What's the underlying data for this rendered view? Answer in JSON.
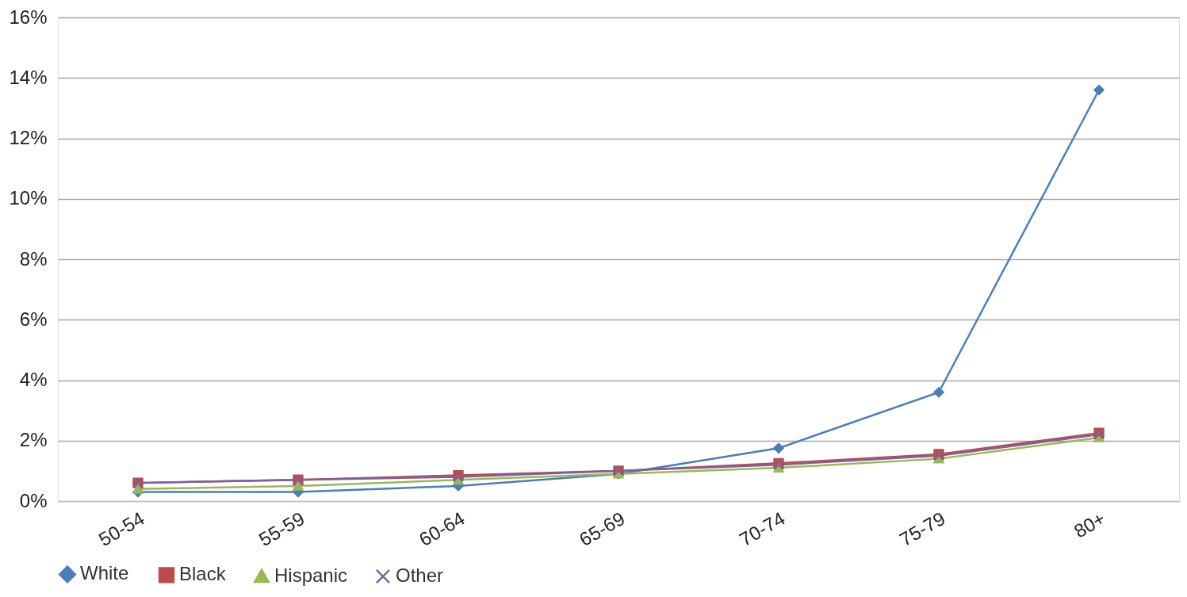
{
  "chart_data": {
    "type": "line",
    "categories": [
      "50-54",
      "55-59",
      "60-64",
      "65-69",
      "70-74",
      "75-79",
      "80+"
    ],
    "series": [
      {
        "name": "White",
        "color": "#4a7ebb",
        "marker": "diamond",
        "values": [
          0.3,
          0.3,
          0.5,
          0.9,
          1.75,
          3.6,
          13.6
        ]
      },
      {
        "name": "Black",
        "color": "#be4b48",
        "marker": "square",
        "values": [
          0.6,
          0.7,
          0.85,
          1.0,
          1.25,
          1.55,
          2.25
        ]
      },
      {
        "name": "Hispanic",
        "color": "#98b954",
        "marker": "triangle",
        "values": [
          0.4,
          0.5,
          0.7,
          0.9,
          1.1,
          1.4,
          2.1
        ]
      },
      {
        "name": "Other",
        "color": "#7d60a0",
        "marker": "cross",
        "values": [
          0.6,
          0.7,
          0.8,
          1.0,
          1.2,
          1.5,
          2.2
        ]
      }
    ],
    "ylim": [
      0,
      16
    ],
    "yticks": [
      {
        "value": 0,
        "label": "0%"
      },
      {
        "value": 2,
        "label": "2%"
      },
      {
        "value": 4,
        "label": "4%"
      },
      {
        "value": 6,
        "label": "6%"
      },
      {
        "value": 8,
        "label": "8%"
      },
      {
        "value": 10,
        "label": "10%"
      },
      {
        "value": 12,
        "label": "12%"
      },
      {
        "value": 14,
        "label": "14%"
      },
      {
        "value": 16,
        "label": "16%"
      }
    ],
    "grid": "y",
    "legend": "bottom",
    "line_style": "solid"
  }
}
